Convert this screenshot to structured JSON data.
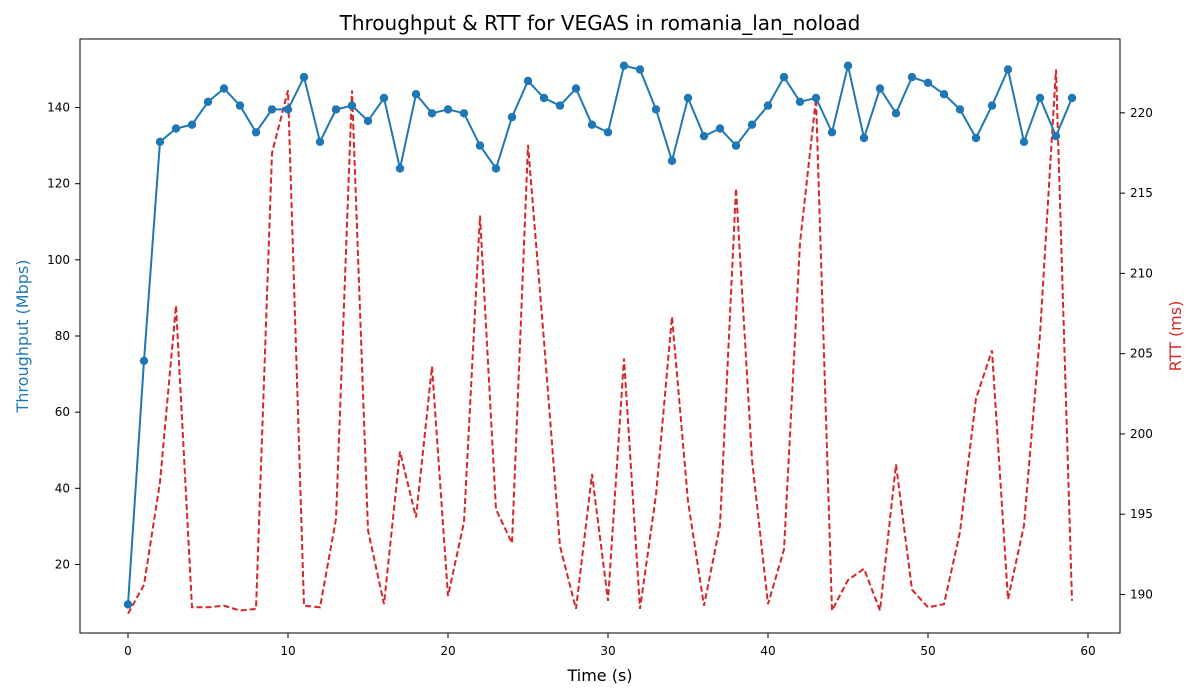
{
  "chart_data": {
    "type": "line",
    "title": "Throughput & RTT for VEGAS in romania_lan_noload",
    "xlabel": "Time (s)",
    "ylabel_left": "Throughput (Mbps)",
    "ylabel_right": "RTT (ms)",
    "xlim": [
      -3,
      62
    ],
    "ylim_left": [
      2,
      158
    ],
    "ylim_right": [
      187.6,
      224.6
    ],
    "xticks": [
      0,
      10,
      20,
      30,
      40,
      50,
      60
    ],
    "yticks_left": [
      20,
      40,
      60,
      80,
      100,
      120,
      140
    ],
    "yticks_right": [
      190,
      195,
      200,
      205,
      210,
      215,
      220
    ],
    "grid": false,
    "colors": {
      "throughput": "#1f77b4",
      "rtt": "#d62728"
    },
    "series": [
      {
        "axis": "left",
        "style": "solid-line-with-circle-markers",
        "x": [
          0,
          1,
          2,
          3,
          4,
          5,
          6,
          7,
          8,
          9,
          10,
          11,
          12,
          13,
          14,
          15,
          16,
          17,
          18,
          19,
          20,
          21,
          22,
          23,
          24,
          25,
          26,
          27,
          28,
          29,
          30,
          31,
          32,
          33,
          34,
          35,
          36,
          37,
          38,
          39,
          40,
          41,
          42,
          43,
          44,
          45,
          46,
          47,
          48,
          49,
          50,
          51,
          52,
          53,
          54,
          55,
          56,
          57,
          58,
          59
        ],
        "values": [
          9.5,
          73.5,
          131,
          134.5,
          135.5,
          141.5,
          145,
          140.5,
          133.5,
          139.5,
          139.5,
          148,
          131,
          139.5,
          140.5,
          136.5,
          142.5,
          124,
          143.5,
          138.5,
          139.5,
          138.5,
          130,
          124,
          137.5,
          147,
          142.5,
          140.5,
          145,
          135.5,
          133.5,
          151,
          150,
          139.5,
          126,
          142.5,
          132.5,
          134.5,
          130,
          135.5,
          140.5,
          148,
          141.5,
          142.5,
          133.5,
          151,
          132,
          145,
          138.5,
          148,
          146.5,
          143.5,
          139.5,
          132,
          140.5,
          150,
          131,
          142.5,
          132.5,
          142.5
        ]
      },
      {
        "axis": "right",
        "style": "dashed-line",
        "x": [
          0,
          1,
          2,
          3,
          4,
          5,
          6,
          7,
          8,
          9,
          10,
          11,
          12,
          13,
          14,
          15,
          16,
          17,
          18,
          19,
          20,
          21,
          22,
          23,
          24,
          25,
          26,
          27,
          28,
          29,
          30,
          31,
          32,
          33,
          34,
          35,
          36,
          37,
          38,
          39,
          40,
          41,
          42,
          43,
          44,
          45,
          46,
          47,
          48,
          49,
          50,
          51,
          52,
          53,
          54,
          55,
          56,
          57,
          58,
          59
        ],
        "values": [
          188.8,
          190.6,
          197,
          208,
          189.2,
          189.2,
          189.3,
          189,
          189.1,
          217.5,
          221.4,
          189.3,
          189.2,
          194.7,
          221.4,
          194,
          189.4,
          198.9,
          194.8,
          204.2,
          189.9,
          194.5,
          213.6,
          195.3,
          193.2,
          218,
          205.8,
          193,
          189.1,
          197.5,
          189.6,
          204.7,
          189.1,
          196.2,
          207.3,
          195.8,
          189.3,
          194.3,
          215.3,
          198.4,
          189.4,
          192.8,
          211.9,
          220.9,
          189,
          190.9,
          191.6,
          189,
          198.1,
          190.3,
          189.2,
          189.4,
          193.9,
          202.2,
          205.2,
          189.7,
          194.3,
          206.2,
          222.7,
          189.6
        ]
      }
    ]
  }
}
